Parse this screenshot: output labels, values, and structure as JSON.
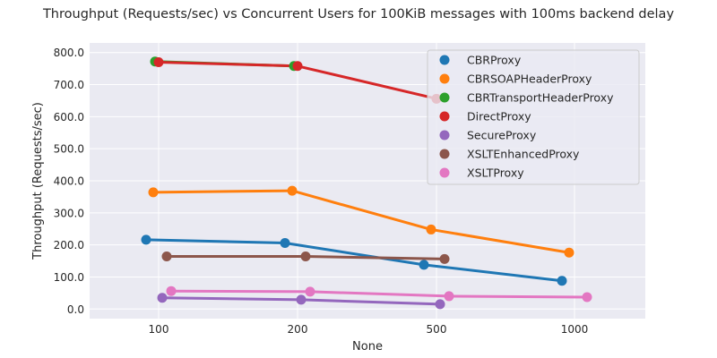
{
  "chart_data": {
    "type": "line",
    "title": "Throughput (Requests/sec) vs Concurrent Users for 100KiB messages with 100ms backend delay",
    "xlabel": "None",
    "ylabel": "Throughput (Requests/sec)",
    "categories": [
      "100",
      "200",
      "500",
      "1000"
    ],
    "yticks": [
      "0.0",
      "100.0",
      "200.0",
      "300.0",
      "400.0",
      "500.0",
      "600.0",
      "700.0",
      "800.0"
    ],
    "ylim": [
      -30,
      830
    ],
    "grid": true,
    "legend_position": "top-right",
    "series": [
      {
        "name": "CBRProxy",
        "color": "#1f77b4",
        "values": [
          216,
          206,
          138,
          88
        ]
      },
      {
        "name": "CBRSOAPHeaderProxy",
        "color": "#ff7f0e",
        "values": [
          364,
          369,
          248,
          176
        ]
      },
      {
        "name": "CBRTransportHeaderProxy",
        "color": "#2ca02c",
        "values": [
          772,
          758,
          null,
          null
        ]
      },
      {
        "name": "DirectProxy",
        "color": "#d62728",
        "values": [
          770,
          758,
          656,
          null
        ]
      },
      {
        "name": "SecureProxy",
        "color": "#9467bd",
        "values": [
          35,
          29,
          15,
          null
        ]
      },
      {
        "name": "XSLTEnhancedProxy",
        "color": "#8c564b",
        "values": [
          164,
          164,
          156,
          null
        ]
      },
      {
        "name": "XSLTProxy",
        "color": "#e377c2",
        "values": [
          56,
          54,
          40,
          37
        ]
      }
    ]
  }
}
